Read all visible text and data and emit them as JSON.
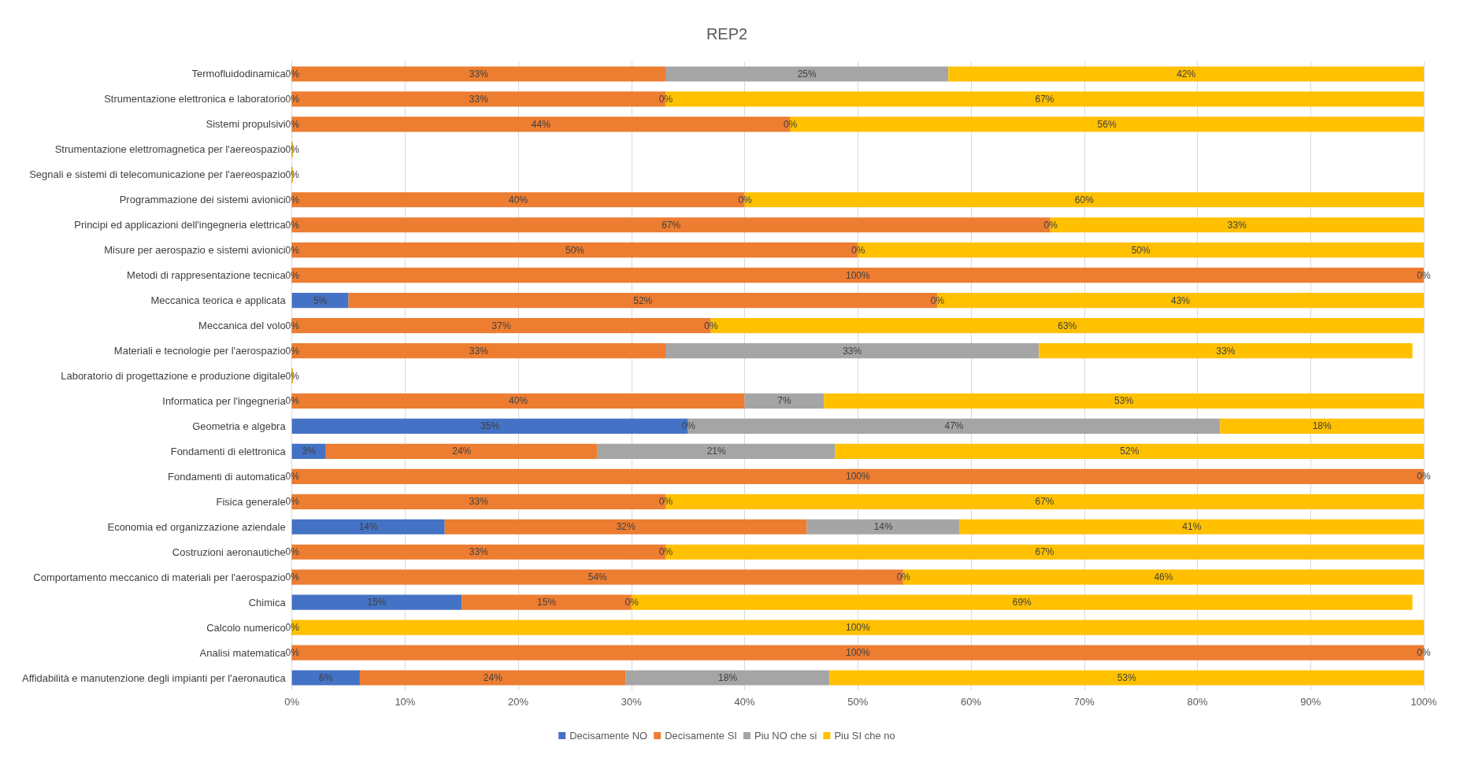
{
  "chart_data": {
    "type": "bar",
    "orientation": "horizontal",
    "stacked": true,
    "title": "REP2",
    "categories": [
      "Termofluidodinamica",
      "Strumentazione elettronica e laboratorio",
      "Sistemi propulsivi",
      "Strumentazione elettromagnetica per l'aereospazio",
      "Segnali e sistemi di telecomunicazione per l'aereospazio",
      "Programmazione dei sistemi avionici",
      "Principi ed applicazioni dell'ingegneria elettrica",
      "Misure per aerospazio e sistemi avionici",
      "Metodi di rappresentazione tecnica",
      "Meccanica teorica e applicata",
      "Meccanica del volo",
      "Materiali e tecnologie per l'aerospazio",
      "Laboratorio di progettazione e produzione digitale",
      "Informatica per l'ingegneria",
      "Geometria e algebra",
      "Fondamenti di elettronica",
      "Fondamenti di automatica",
      "Fisica generale",
      "Economia ed organizzazione aziendale",
      "Costruzioni aeronautiche",
      "Comportamento meccanico di materiali per l'aerospazio",
      "Chimica",
      "Calcolo numerico",
      "Analisi matematica",
      "Affidabilità e manutenzione degli impianti per l'aeronautica"
    ],
    "series": [
      {
        "name": "Decisamente NO",
        "color": "#4472c4",
        "values": [
          0,
          0,
          0,
          0,
          0,
          0,
          0,
          0,
          0,
          5,
          0,
          0,
          0,
          0,
          35,
          3,
          0,
          0,
          13.5,
          0,
          0,
          15,
          0,
          0,
          6
        ],
        "value_labels": [
          "0%",
          "0%",
          "0%",
          "0%",
          "0%",
          "0%",
          "0%",
          "0%",
          "0%",
          "5%",
          "0%",
          "0%",
          "0%",
          "0%",
          "35%",
          "3%",
          "0%",
          "0%",
          "14%",
          "0%",
          "0%",
          "15%",
          "0%",
          "0%",
          "6%"
        ]
      },
      {
        "name": "Decisamente SI",
        "color": "#ed7d31",
        "values": [
          33,
          33,
          44,
          0,
          0,
          40,
          67,
          50,
          100,
          52,
          37,
          33,
          0,
          40,
          0,
          24,
          100,
          33,
          32,
          33,
          54,
          15,
          0,
          100,
          23.5
        ],
        "value_labels": [
          "33%",
          "33%",
          "44%",
          null,
          null,
          "40%",
          "67%",
          "50%",
          "100%",
          "52%",
          "37%",
          "33%",
          null,
          "40%",
          "0%",
          "24%",
          "100%",
          "33%",
          "32%",
          "33%",
          "54%",
          "15%",
          null,
          "100%",
          "24%"
        ]
      },
      {
        "name": "Piu NO che si",
        "color": "#a5a5a5",
        "values": [
          25,
          0,
          0,
          0,
          0,
          0,
          0,
          0,
          0,
          0,
          0,
          33,
          0,
          7,
          47,
          21,
          0,
          0,
          13.5,
          0,
          0,
          0,
          0,
          0,
          18
        ],
        "value_labels": [
          "25%",
          "0%",
          "0%",
          null,
          null,
          "0%",
          "0%",
          "0%",
          null,
          "0%",
          "0%",
          "33%",
          null,
          "7%",
          "47%",
          "21%",
          null,
          "0%",
          "14%",
          "0%",
          "0%",
          "0%",
          null,
          null,
          "18%"
        ]
      },
      {
        "name": "Piu SI che no",
        "color": "#ffc000",
        "values": [
          42,
          67,
          56,
          0,
          0,
          60,
          33,
          50,
          0,
          43,
          63,
          33,
          0,
          53,
          18,
          52,
          0,
          67,
          41,
          67,
          46,
          69,
          100,
          0,
          52.5
        ],
        "value_labels": [
          "42%",
          "67%",
          "56%",
          null,
          null,
          "60%",
          "33%",
          "50%",
          "0%",
          "43%",
          "63%",
          "33%",
          null,
          "53%",
          "18%",
          "52%",
          "0%",
          "67%",
          "41%",
          "67%",
          "46%",
          "69%",
          "100%",
          "0%",
          "53%"
        ]
      }
    ],
    "xlim": [
      0,
      100
    ],
    "xticks": [
      {
        "value": 0,
        "label": "0%"
      },
      {
        "value": 10,
        "label": "10%"
      },
      {
        "value": 20,
        "label": "20%"
      },
      {
        "value": 30,
        "label": "30%"
      },
      {
        "value": 40,
        "label": "40%"
      },
      {
        "value": 50,
        "label": "50%"
      },
      {
        "value": 60,
        "label": "60%"
      },
      {
        "value": 70,
        "label": "70%"
      },
      {
        "value": 80,
        "label": "80%"
      },
      {
        "value": 90,
        "label": "90%"
      },
      {
        "value": 100,
        "label": "100%"
      }
    ],
    "grid": "x",
    "legend": "bottom"
  }
}
